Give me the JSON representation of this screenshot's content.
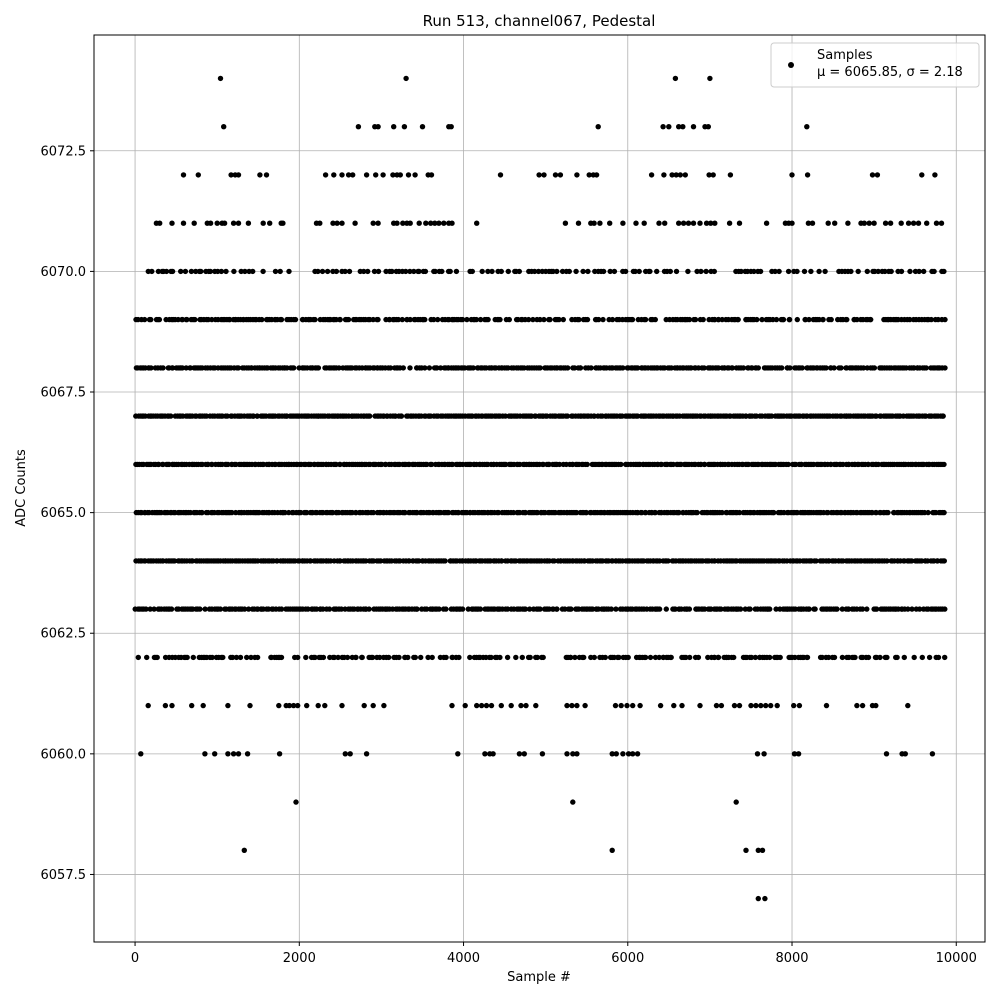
{
  "chart_data": {
    "type": "scatter",
    "title": "Run 513, channel067, Pedestal",
    "xlabel": "Sample #",
    "ylabel": "ADC Counts",
    "xlim": [
      -500,
      10350
    ],
    "ylim": [
      6056.1,
      6074.9
    ],
    "xticks": [
      0,
      2000,
      4000,
      6000,
      8000,
      10000
    ],
    "xtick_labels": [
      "0",
      "2000",
      "4000",
      "6000",
      "8000",
      "10000"
    ],
    "yticks": [
      6057.5,
      6060.0,
      6062.5,
      6065.0,
      6067.5,
      6070.0,
      6072.5
    ],
    "ytick_labels": [
      "6057.5",
      "6060.0",
      "6062.5",
      "6065.0",
      "6067.5",
      "6070.0",
      "6072.5"
    ],
    "grid": true,
    "legend": {
      "position": "top-right",
      "label": "Samples",
      "stats_line": "μ = 6065.85, σ = 2.18"
    },
    "series": [
      {
        "name": "Samples",
        "color": "#000000",
        "marker": "circle",
        "n_samples": 9850,
        "mean": 6065.85,
        "sigma": 2.18,
        "dense_levels": [
          6062,
          6063,
          6064,
          6065,
          6066,
          6067,
          6068,
          6069
        ],
        "sparse_points": [
          {
            "x": 1040,
            "y": 6074
          },
          {
            "x": 3300,
            "y": 6074
          },
          {
            "x": 6580,
            "y": 6074
          },
          {
            "x": 7000,
            "y": 6074
          },
          {
            "x": 1080,
            "y": 6073
          },
          {
            "x": 2720,
            "y": 6073
          },
          {
            "x": 2920,
            "y": 6073
          },
          {
            "x": 2960,
            "y": 6073
          },
          {
            "x": 3150,
            "y": 6073
          },
          {
            "x": 3280,
            "y": 6073
          },
          {
            "x": 3500,
            "y": 6073
          },
          {
            "x": 3820,
            "y": 6073
          },
          {
            "x": 3850,
            "y": 6073
          },
          {
            "x": 5640,
            "y": 6073
          },
          {
            "x": 6430,
            "y": 6073
          },
          {
            "x": 6500,
            "y": 6073
          },
          {
            "x": 6620,
            "y": 6073
          },
          {
            "x": 6670,
            "y": 6073
          },
          {
            "x": 6800,
            "y": 6073
          },
          {
            "x": 6940,
            "y": 6073
          },
          {
            "x": 6980,
            "y": 6073
          },
          {
            "x": 8180,
            "y": 6073
          },
          {
            "x": 590,
            "y": 6072
          },
          {
            "x": 770,
            "y": 6072
          },
          {
            "x": 1170,
            "y": 6072
          },
          {
            "x": 1220,
            "y": 6072
          },
          {
            "x": 1260,
            "y": 6072
          },
          {
            "x": 1520,
            "y": 6072
          },
          {
            "x": 1600,
            "y": 6072
          },
          {
            "x": 2320,
            "y": 6072
          },
          {
            "x": 2420,
            "y": 6072
          },
          {
            "x": 2520,
            "y": 6072
          },
          {
            "x": 2600,
            "y": 6072
          },
          {
            "x": 2650,
            "y": 6072
          },
          {
            "x": 2820,
            "y": 6072
          },
          {
            "x": 2930,
            "y": 6072
          },
          {
            "x": 3020,
            "y": 6072
          },
          {
            "x": 3140,
            "y": 6072
          },
          {
            "x": 3190,
            "y": 6072
          },
          {
            "x": 3230,
            "y": 6072
          },
          {
            "x": 3330,
            "y": 6072
          },
          {
            "x": 3410,
            "y": 6072
          },
          {
            "x": 3570,
            "y": 6072
          },
          {
            "x": 3610,
            "y": 6072
          },
          {
            "x": 4450,
            "y": 6072
          },
          {
            "x": 4920,
            "y": 6072
          },
          {
            "x": 4980,
            "y": 6072
          },
          {
            "x": 5120,
            "y": 6072
          },
          {
            "x": 5180,
            "y": 6072
          },
          {
            "x": 5380,
            "y": 6072
          },
          {
            "x": 5530,
            "y": 6072
          },
          {
            "x": 5580,
            "y": 6072
          },
          {
            "x": 5620,
            "y": 6072
          },
          {
            "x": 6290,
            "y": 6072
          },
          {
            "x": 6440,
            "y": 6072
          },
          {
            "x": 6540,
            "y": 6072
          },
          {
            "x": 6590,
            "y": 6072
          },
          {
            "x": 6640,
            "y": 6072
          },
          {
            "x": 6700,
            "y": 6072
          },
          {
            "x": 6990,
            "y": 6072
          },
          {
            "x": 7040,
            "y": 6072
          },
          {
            "x": 7250,
            "y": 6072
          },
          {
            "x": 8000,
            "y": 6072
          },
          {
            "x": 8190,
            "y": 6072
          },
          {
            "x": 8980,
            "y": 6072
          },
          {
            "x": 9040,
            "y": 6072
          },
          {
            "x": 9580,
            "y": 6072
          },
          {
            "x": 9740,
            "y": 6072
          },
          {
            "x": 260,
            "y": 6071
          },
          {
            "x": 300,
            "y": 6071
          },
          {
            "x": 450,
            "y": 6071
          },
          {
            "x": 590,
            "y": 6071
          },
          {
            "x": 720,
            "y": 6071
          },
          {
            "x": 880,
            "y": 6071
          },
          {
            "x": 920,
            "y": 6071
          },
          {
            "x": 1000,
            "y": 6071
          },
          {
            "x": 1060,
            "y": 6071
          },
          {
            "x": 1090,
            "y": 6071
          },
          {
            "x": 1200,
            "y": 6071
          },
          {
            "x": 1260,
            "y": 6071
          },
          {
            "x": 1380,
            "y": 6071
          },
          {
            "x": 1560,
            "y": 6071
          },
          {
            "x": 1640,
            "y": 6071
          },
          {
            "x": 1780,
            "y": 6071
          },
          {
            "x": 1800,
            "y": 6071
          },
          {
            "x": 2210,
            "y": 6071
          },
          {
            "x": 2250,
            "y": 6071
          },
          {
            "x": 2410,
            "y": 6071
          },
          {
            "x": 2460,
            "y": 6071
          },
          {
            "x": 2520,
            "y": 6071
          },
          {
            "x": 2680,
            "y": 6071
          },
          {
            "x": 2900,
            "y": 6071
          },
          {
            "x": 2960,
            "y": 6071
          },
          {
            "x": 3150,
            "y": 6071
          },
          {
            "x": 3190,
            "y": 6071
          },
          {
            "x": 3260,
            "y": 6071
          },
          {
            "x": 3310,
            "y": 6071
          },
          {
            "x": 3350,
            "y": 6071
          },
          {
            "x": 3460,
            "y": 6071
          },
          {
            "x": 3540,
            "y": 6071
          },
          {
            "x": 3600,
            "y": 6071
          },
          {
            "x": 3650,
            "y": 6071
          },
          {
            "x": 3700,
            "y": 6071
          },
          {
            "x": 3760,
            "y": 6071
          },
          {
            "x": 3820,
            "y": 6071
          },
          {
            "x": 3860,
            "y": 6071
          },
          {
            "x": 4160,
            "y": 6071
          },
          {
            "x": 5240,
            "y": 6071
          },
          {
            "x": 5400,
            "y": 6071
          },
          {
            "x": 5550,
            "y": 6071
          },
          {
            "x": 5590,
            "y": 6071
          },
          {
            "x": 5660,
            "y": 6071
          },
          {
            "x": 5780,
            "y": 6071
          },
          {
            "x": 5940,
            "y": 6071
          },
          {
            "x": 6100,
            "y": 6071
          },
          {
            "x": 6200,
            "y": 6071
          },
          {
            "x": 6380,
            "y": 6071
          },
          {
            "x": 6450,
            "y": 6071
          },
          {
            "x": 6620,
            "y": 6071
          },
          {
            "x": 6680,
            "y": 6071
          },
          {
            "x": 6740,
            "y": 6071
          },
          {
            "x": 6800,
            "y": 6071
          },
          {
            "x": 6880,
            "y": 6071
          },
          {
            "x": 6960,
            "y": 6071
          },
          {
            "x": 7010,
            "y": 6071
          },
          {
            "x": 7060,
            "y": 6071
          },
          {
            "x": 7240,
            "y": 6071
          },
          {
            "x": 7360,
            "y": 6071
          },
          {
            "x": 7690,
            "y": 6071
          },
          {
            "x": 7920,
            "y": 6071
          },
          {
            "x": 7960,
            "y": 6071
          },
          {
            "x": 8000,
            "y": 6071
          },
          {
            "x": 8200,
            "y": 6071
          },
          {
            "x": 8250,
            "y": 6071
          },
          {
            "x": 8440,
            "y": 6071
          },
          {
            "x": 8520,
            "y": 6071
          },
          {
            "x": 8680,
            "y": 6071
          },
          {
            "x": 8840,
            "y": 6071
          },
          {
            "x": 8880,
            "y": 6071
          },
          {
            "x": 8940,
            "y": 6071
          },
          {
            "x": 9000,
            "y": 6071
          },
          {
            "x": 9140,
            "y": 6071
          },
          {
            "x": 9200,
            "y": 6071
          },
          {
            "x": 9330,
            "y": 6071
          },
          {
            "x": 9420,
            "y": 6071
          },
          {
            "x": 9480,
            "y": 6071
          },
          {
            "x": 9540,
            "y": 6071
          },
          {
            "x": 9640,
            "y": 6071
          },
          {
            "x": 9760,
            "y": 6071
          },
          {
            "x": 9820,
            "y": 6071
          },
          {
            "x": 160,
            "y": 6061
          },
          {
            "x": 370,
            "y": 6061
          },
          {
            "x": 450,
            "y": 6061
          },
          {
            "x": 690,
            "y": 6061
          },
          {
            "x": 830,
            "y": 6061
          },
          {
            "x": 1130,
            "y": 6061
          },
          {
            "x": 1400,
            "y": 6061
          },
          {
            "x": 1750,
            "y": 6061
          },
          {
            "x": 1840,
            "y": 6061
          },
          {
            "x": 1880,
            "y": 6061
          },
          {
            "x": 1930,
            "y": 6061
          },
          {
            "x": 1980,
            "y": 6061
          },
          {
            "x": 2090,
            "y": 6061
          },
          {
            "x": 2230,
            "y": 6061
          },
          {
            "x": 2310,
            "y": 6061
          },
          {
            "x": 2520,
            "y": 6061
          },
          {
            "x": 2790,
            "y": 6061
          },
          {
            "x": 2900,
            "y": 6061
          },
          {
            "x": 3030,
            "y": 6061
          },
          {
            "x": 3860,
            "y": 6061
          },
          {
            "x": 4020,
            "y": 6061
          },
          {
            "x": 4160,
            "y": 6061
          },
          {
            "x": 4220,
            "y": 6061
          },
          {
            "x": 4280,
            "y": 6061
          },
          {
            "x": 4340,
            "y": 6061
          },
          {
            "x": 4460,
            "y": 6061
          },
          {
            "x": 4580,
            "y": 6061
          },
          {
            "x": 4700,
            "y": 6061
          },
          {
            "x": 4760,
            "y": 6061
          },
          {
            "x": 4880,
            "y": 6061
          },
          {
            "x": 5260,
            "y": 6061
          },
          {
            "x": 5320,
            "y": 6061
          },
          {
            "x": 5380,
            "y": 6061
          },
          {
            "x": 5480,
            "y": 6061
          },
          {
            "x": 5850,
            "y": 6061
          },
          {
            "x": 5920,
            "y": 6061
          },
          {
            "x": 5990,
            "y": 6061
          },
          {
            "x": 6060,
            "y": 6061
          },
          {
            "x": 6150,
            "y": 6061
          },
          {
            "x": 6400,
            "y": 6061
          },
          {
            "x": 6560,
            "y": 6061
          },
          {
            "x": 6660,
            "y": 6061
          },
          {
            "x": 6880,
            "y": 6061
          },
          {
            "x": 7080,
            "y": 6061
          },
          {
            "x": 7140,
            "y": 6061
          },
          {
            "x": 7300,
            "y": 6061
          },
          {
            "x": 7360,
            "y": 6061
          },
          {
            "x": 7500,
            "y": 6061
          },
          {
            "x": 7560,
            "y": 6061
          },
          {
            "x": 7620,
            "y": 6061
          },
          {
            "x": 7680,
            "y": 6061
          },
          {
            "x": 7740,
            "y": 6061
          },
          {
            "x": 7820,
            "y": 6061
          },
          {
            "x": 8020,
            "y": 6061
          },
          {
            "x": 8090,
            "y": 6061
          },
          {
            "x": 8420,
            "y": 6061
          },
          {
            "x": 8790,
            "y": 6061
          },
          {
            "x": 8860,
            "y": 6061
          },
          {
            "x": 8980,
            "y": 6061
          },
          {
            "x": 9020,
            "y": 6061
          },
          {
            "x": 9410,
            "y": 6061
          },
          {
            "x": 70,
            "y": 6060
          },
          {
            "x": 850,
            "y": 6060
          },
          {
            "x": 970,
            "y": 6060
          },
          {
            "x": 1130,
            "y": 6060
          },
          {
            "x": 1200,
            "y": 6060
          },
          {
            "x": 1260,
            "y": 6060
          },
          {
            "x": 1370,
            "y": 6060
          },
          {
            "x": 1760,
            "y": 6060
          },
          {
            "x": 2560,
            "y": 6060
          },
          {
            "x": 2620,
            "y": 6060
          },
          {
            "x": 2820,
            "y": 6060
          },
          {
            "x": 3930,
            "y": 6060
          },
          {
            "x": 4260,
            "y": 6060
          },
          {
            "x": 4320,
            "y": 6060
          },
          {
            "x": 4360,
            "y": 6060
          },
          {
            "x": 4680,
            "y": 6060
          },
          {
            "x": 4740,
            "y": 6060
          },
          {
            "x": 4960,
            "y": 6060
          },
          {
            "x": 5260,
            "y": 6060
          },
          {
            "x": 5330,
            "y": 6060
          },
          {
            "x": 5380,
            "y": 6060
          },
          {
            "x": 5810,
            "y": 6060
          },
          {
            "x": 5860,
            "y": 6060
          },
          {
            "x": 5940,
            "y": 6060
          },
          {
            "x": 6010,
            "y": 6060
          },
          {
            "x": 6060,
            "y": 6060
          },
          {
            "x": 6120,
            "y": 6060
          },
          {
            "x": 7580,
            "y": 6060
          },
          {
            "x": 7660,
            "y": 6060
          },
          {
            "x": 8030,
            "y": 6060
          },
          {
            "x": 8080,
            "y": 6060
          },
          {
            "x": 9150,
            "y": 6060
          },
          {
            "x": 9340,
            "y": 6060
          },
          {
            "x": 9380,
            "y": 6060
          },
          {
            "x": 9710,
            "y": 6060
          },
          {
            "x": 1960,
            "y": 6059
          },
          {
            "x": 5330,
            "y": 6059
          },
          {
            "x": 7320,
            "y": 6059
          },
          {
            "x": 1330,
            "y": 6058
          },
          {
            "x": 5810,
            "y": 6058
          },
          {
            "x": 7440,
            "y": 6058
          },
          {
            "x": 7590,
            "y": 6058
          },
          {
            "x": 7640,
            "y": 6058
          },
          {
            "x": 7590,
            "y": 6057
          },
          {
            "x": 7670,
            "y": 6057
          }
        ]
      }
    ]
  }
}
